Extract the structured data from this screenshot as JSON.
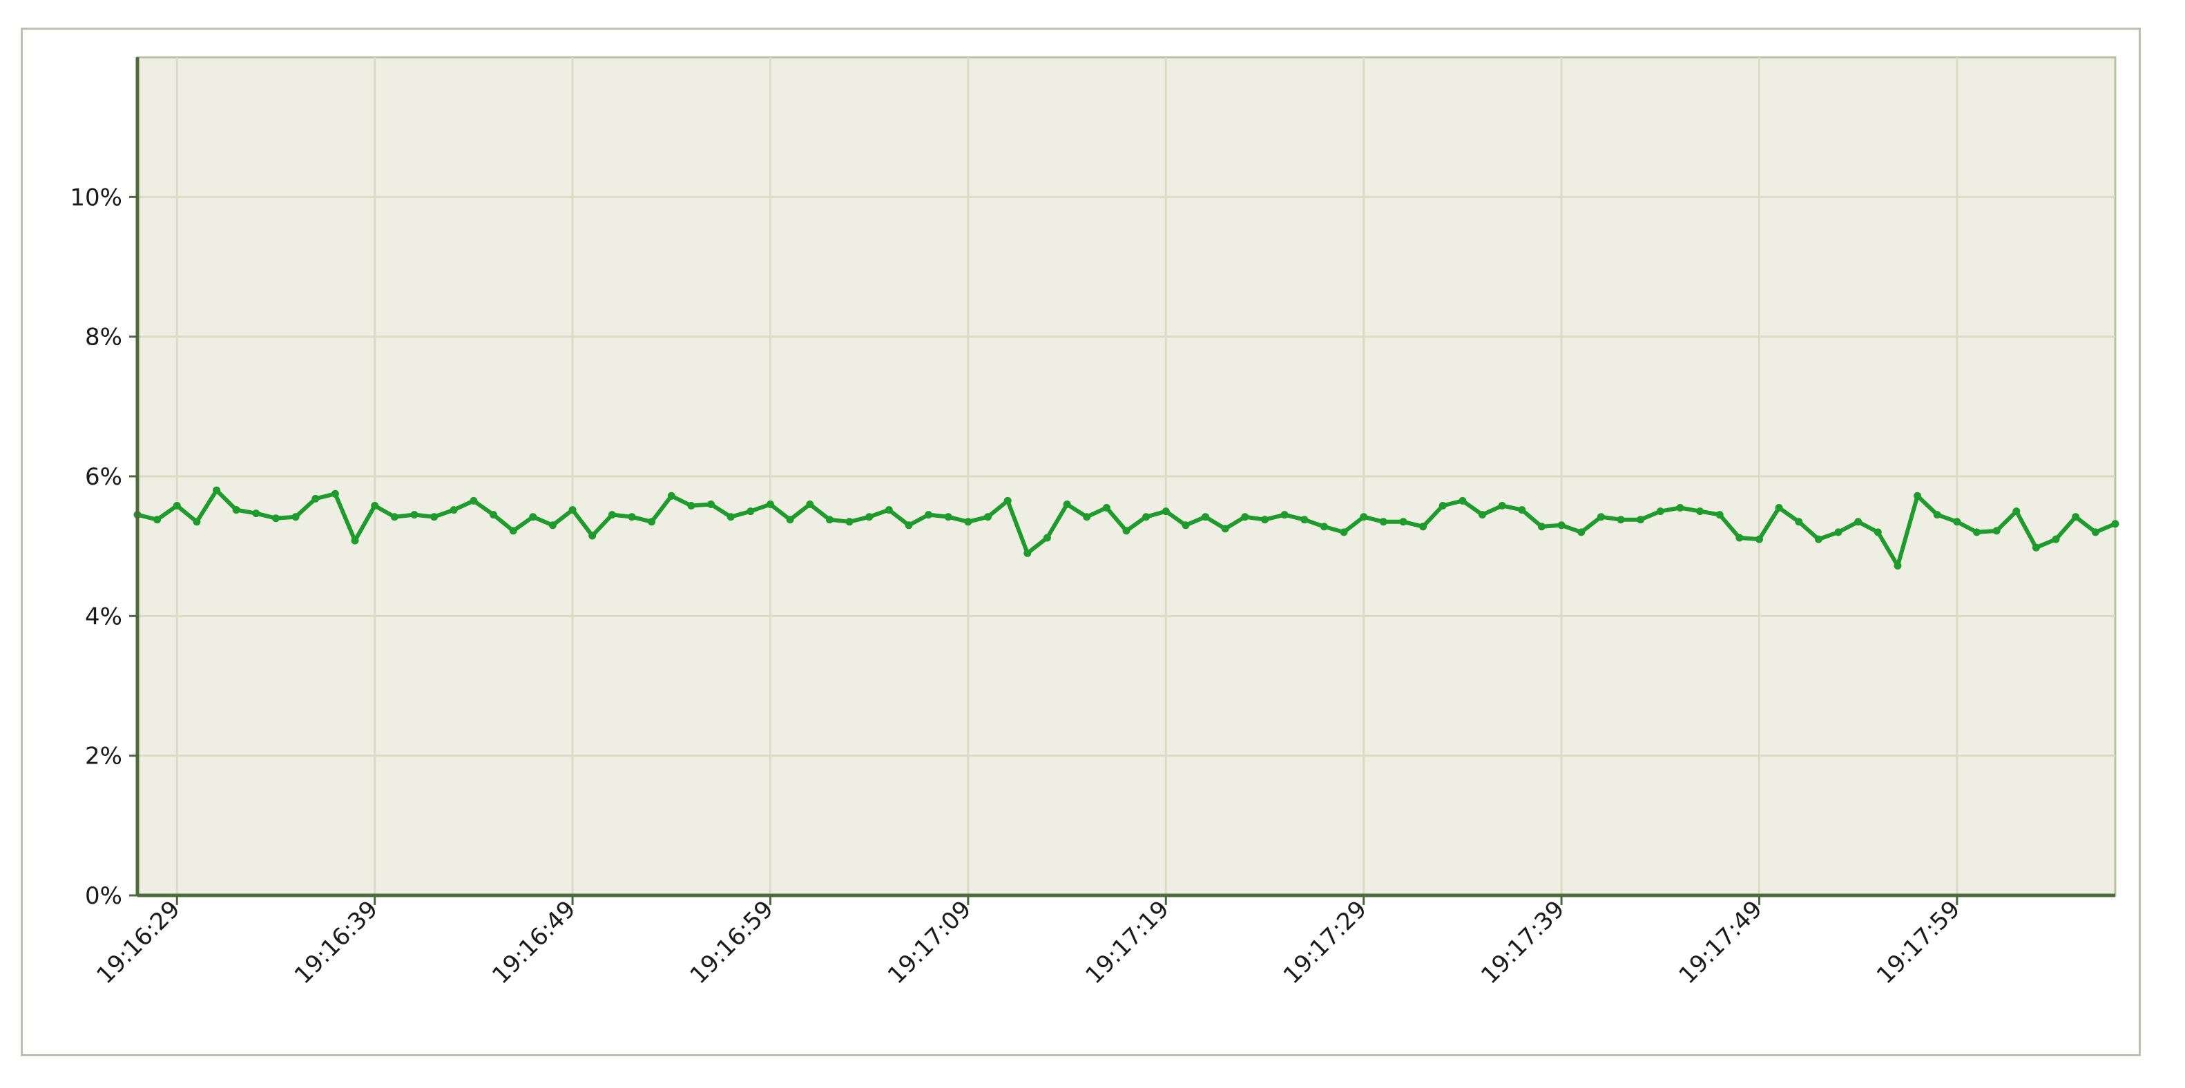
{
  "chart_data": {
    "type": "line",
    "title": "",
    "xlabel": "",
    "ylabel": "",
    "x_ticks": [
      "19:16:29",
      "19:16:39",
      "19:16:49",
      "19:16:59",
      "19:17:09",
      "19:17:19",
      "19:17:29",
      "19:17:39",
      "19:17:49",
      "19:17:59"
    ],
    "y_ticks": [
      "0%",
      "2%",
      "4%",
      "6%",
      "8%",
      "10%"
    ],
    "ylim": [
      0,
      12
    ],
    "xlim": [
      "19:16:27",
      "19:18:07"
    ],
    "grid": true,
    "legend": "none",
    "colors": {
      "plot_background": "#eeeee2",
      "grid": "#d9dcc6",
      "axis": "#4c6a3c",
      "series": "#1f9a2c"
    },
    "series": [
      {
        "times": [
          "19:16:27",
          "19:16:28",
          "19:16:29",
          "19:16:30",
          "19:16:31",
          "19:16:32",
          "19:16:33",
          "19:16:34",
          "19:16:35",
          "19:16:36",
          "19:16:37",
          "19:16:38",
          "19:16:39",
          "19:16:40",
          "19:16:41",
          "19:16:42",
          "19:16:43",
          "19:16:44",
          "19:16:45",
          "19:16:46",
          "19:16:47",
          "19:16:48",
          "19:16:49",
          "19:16:50",
          "19:16:51",
          "19:16:52",
          "19:16:53",
          "19:16:54",
          "19:16:55",
          "19:16:56",
          "19:16:57",
          "19:16:58",
          "19:16:59",
          "19:17:00",
          "19:17:01",
          "19:17:02",
          "19:17:03",
          "19:17:04",
          "19:17:05",
          "19:17:06",
          "19:17:07",
          "19:17:08",
          "19:17:09",
          "19:17:10",
          "19:17:11",
          "19:17:12",
          "19:17:13",
          "19:17:14",
          "19:17:15",
          "19:17:16",
          "19:17:17",
          "19:17:18",
          "19:17:19",
          "19:17:20",
          "19:17:21",
          "19:17:22",
          "19:17:23",
          "19:17:24",
          "19:17:25",
          "19:17:26",
          "19:17:27",
          "19:17:28",
          "19:17:29",
          "19:17:30",
          "19:17:31",
          "19:17:32",
          "19:17:33",
          "19:17:34",
          "19:17:35",
          "19:17:36",
          "19:17:37",
          "19:17:38",
          "19:17:39",
          "19:17:40",
          "19:17:41",
          "19:17:42",
          "19:17:43",
          "19:17:44",
          "19:17:45",
          "19:17:46",
          "19:17:47",
          "19:17:48",
          "19:17:49",
          "19:17:50",
          "19:17:51",
          "19:17:52",
          "19:17:53",
          "19:17:54",
          "19:17:55",
          "19:17:56",
          "19:17:57",
          "19:17:58",
          "19:17:59",
          "19:18:00",
          "19:18:01",
          "19:18:02",
          "19:18:03",
          "19:18:04",
          "19:18:05",
          "19:18:06",
          "19:18:07"
        ],
        "values": [
          5.45,
          5.38,
          5.58,
          5.35,
          5.8,
          5.52,
          5.47,
          5.4,
          5.42,
          5.68,
          5.75,
          5.08,
          5.58,
          5.42,
          5.45,
          5.42,
          5.52,
          5.65,
          5.45,
          5.22,
          5.42,
          5.3,
          5.52,
          5.15,
          5.45,
          5.42,
          5.35,
          5.72,
          5.58,
          5.6,
          5.42,
          5.5,
          5.6,
          5.38,
          5.6,
          5.38,
          5.35,
          5.42,
          5.52,
          5.3,
          5.45,
          5.42,
          5.35,
          5.42,
          5.65,
          4.9,
          5.12,
          5.6,
          5.42,
          5.55,
          5.22,
          5.42,
          5.5,
          5.3,
          5.42,
          5.25,
          5.42,
          5.38,
          5.45,
          5.38,
          5.28,
          5.2,
          5.42,
          5.35,
          5.35,
          5.28,
          5.58,
          5.65,
          5.45,
          5.58,
          5.52,
          5.28,
          5.3,
          5.2,
          5.42,
          5.38,
          5.38,
          5.5,
          5.55,
          5.5,
          5.45,
          5.12,
          5.1,
          5.55,
          5.35,
          5.1,
          5.2,
          5.35,
          5.2,
          4.72,
          5.72,
          5.45,
          5.35,
          5.2,
          5.22,
          5.5,
          4.98,
          5.1,
          5.42,
          5.2,
          5.32
        ]
      }
    ]
  }
}
